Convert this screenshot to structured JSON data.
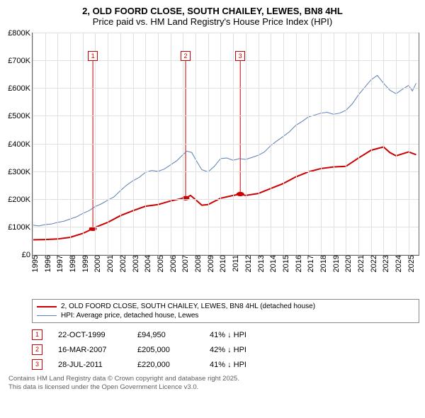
{
  "title_line1": "2, OLD FOORD CLOSE, SOUTH CHAILEY, LEWES, BN8 4HL",
  "title_line2": "Price paid vs. HM Land Registry's House Price Index (HPI)",
  "chart": {
    "type": "line",
    "xlim": [
      1995,
      2025.8
    ],
    "ylim": [
      0,
      800000
    ],
    "y_ticks": [
      0,
      100000,
      200000,
      300000,
      400000,
      500000,
      600000,
      700000,
      800000
    ],
    "y_tick_labels": [
      "£0",
      "£100K",
      "£200K",
      "£300K",
      "£400K",
      "£500K",
      "£600K",
      "£700K",
      "£800K"
    ],
    "x_ticks": [
      1995,
      1996,
      1997,
      1998,
      1999,
      2000,
      2001,
      2002,
      2003,
      2004,
      2005,
      2006,
      2007,
      2008,
      2009,
      2010,
      2011,
      2012,
      2013,
      2014,
      2015,
      2016,
      2017,
      2018,
      2019,
      2020,
      2021,
      2022,
      2023,
      2024,
      2025
    ],
    "grid_color": "#e0e0e0",
    "background_color": "#ffffff",
    "series": [
      {
        "id": "price_paid",
        "label": "2, OLD FOORD CLOSE, SOUTH CHAILEY, LEWES, BN8 4HL (detached house)",
        "color": "#cc0000",
        "width": 2,
        "points": [
          [
            1995,
            55000
          ],
          [
            1996,
            56000
          ],
          [
            1997,
            58000
          ],
          [
            1998,
            64000
          ],
          [
            1999,
            78000
          ],
          [
            1999.81,
            94950
          ],
          [
            2000,
            100000
          ],
          [
            2001,
            118000
          ],
          [
            2002,
            142000
          ],
          [
            2003,
            160000
          ],
          [
            2004,
            176000
          ],
          [
            2005,
            182000
          ],
          [
            2006,
            195000
          ],
          [
            2007,
            205000
          ],
          [
            2007.21,
            205000
          ],
          [
            2007.6,
            215000
          ],
          [
            2008,
            200000
          ],
          [
            2008.5,
            180000
          ],
          [
            2009,
            182000
          ],
          [
            2010,
            205000
          ],
          [
            2011,
            215000
          ],
          [
            2011.57,
            220000
          ],
          [
            2012,
            215000
          ],
          [
            2013,
            222000
          ],
          [
            2014,
            240000
          ],
          [
            2015,
            258000
          ],
          [
            2016,
            282000
          ],
          [
            2017,
            300000
          ],
          [
            2018,
            312000
          ],
          [
            2019,
            318000
          ],
          [
            2020,
            320000
          ],
          [
            2021,
            350000
          ],
          [
            2022,
            378000
          ],
          [
            2023,
            390000
          ],
          [
            2023.5,
            370000
          ],
          [
            2024,
            358000
          ],
          [
            2024.5,
            365000
          ],
          [
            2025,
            372000
          ],
          [
            2025.6,
            362000
          ]
        ],
        "sale_markers": [
          {
            "x": 1999.81,
            "y": 94950,
            "n": "1"
          },
          {
            "x": 2007.21,
            "y": 205000,
            "n": "2"
          },
          {
            "x": 2011.57,
            "y": 220000,
            "n": "3"
          }
        ]
      },
      {
        "id": "hpi",
        "label": "HPI: Average price, detached house, Lewes",
        "color": "#5b7fb4",
        "width": 1,
        "points": [
          [
            1995,
            108000
          ],
          [
            1995.5,
            105000
          ],
          [
            1996,
            110000
          ],
          [
            1996.5,
            112000
          ],
          [
            1997,
            118000
          ],
          [
            1997.5,
            122000
          ],
          [
            1998,
            130000
          ],
          [
            1998.5,
            138000
          ],
          [
            1999,
            150000
          ],
          [
            1999.5,
            160000
          ],
          [
            2000,
            175000
          ],
          [
            2000.5,
            185000
          ],
          [
            2001,
            198000
          ],
          [
            2001.5,
            210000
          ],
          [
            2002,
            232000
          ],
          [
            2002.5,
            252000
          ],
          [
            2003,
            268000
          ],
          [
            2003.5,
            280000
          ],
          [
            2004,
            298000
          ],
          [
            2004.5,
            305000
          ],
          [
            2005,
            302000
          ],
          [
            2005.5,
            310000
          ],
          [
            2006,
            325000
          ],
          [
            2006.5,
            340000
          ],
          [
            2007,
            362000
          ],
          [
            2007.3,
            375000
          ],
          [
            2007.7,
            370000
          ],
          [
            2008,
            345000
          ],
          [
            2008.5,
            308000
          ],
          [
            2009,
            300000
          ],
          [
            2009.5,
            320000
          ],
          [
            2010,
            348000
          ],
          [
            2010.5,
            350000
          ],
          [
            2011,
            342000
          ],
          [
            2011.5,
            348000
          ],
          [
            2012,
            345000
          ],
          [
            2012.5,
            352000
          ],
          [
            2013,
            360000
          ],
          [
            2013.5,
            372000
          ],
          [
            2014,
            395000
          ],
          [
            2014.5,
            412000
          ],
          [
            2015,
            428000
          ],
          [
            2015.5,
            445000
          ],
          [
            2016,
            468000
          ],
          [
            2016.5,
            482000
          ],
          [
            2017,
            498000
          ],
          [
            2017.5,
            505000
          ],
          [
            2018,
            512000
          ],
          [
            2018.5,
            515000
          ],
          [
            2019,
            508000
          ],
          [
            2019.5,
            512000
          ],
          [
            2020,
            522000
          ],
          [
            2020.5,
            545000
          ],
          [
            2021,
            578000
          ],
          [
            2021.5,
            605000
          ],
          [
            2022,
            632000
          ],
          [
            2022.5,
            648000
          ],
          [
            2023,
            620000
          ],
          [
            2023.5,
            595000
          ],
          [
            2024,
            582000
          ],
          [
            2024.5,
            598000
          ],
          [
            2025,
            612000
          ],
          [
            2025.3,
            592000
          ],
          [
            2025.6,
            620000
          ]
        ]
      }
    ],
    "marker_box_top_y": 700000
  },
  "legend": {
    "items": [
      {
        "color": "#cc0000",
        "width": 2,
        "label": "2, OLD FOORD CLOSE, SOUTH CHAILEY, LEWES, BN8 4HL (detached house)"
      },
      {
        "color": "#5b7fb4",
        "width": 1,
        "label": "HPI: Average price, detached house, Lewes"
      }
    ]
  },
  "transactions": [
    {
      "n": "1",
      "date": "22-OCT-1999",
      "price": "£94,950",
      "diff": "41% ↓ HPI"
    },
    {
      "n": "2",
      "date": "16-MAR-2007",
      "price": "£205,000",
      "diff": "42% ↓ HPI"
    },
    {
      "n": "3",
      "date": "28-JUL-2011",
      "price": "£220,000",
      "diff": "41% ↓ HPI"
    }
  ],
  "footer_line1": "Contains HM Land Registry data © Crown copyright and database right 2025.",
  "footer_line2": "This data is licensed under the Open Government Licence v3.0."
}
